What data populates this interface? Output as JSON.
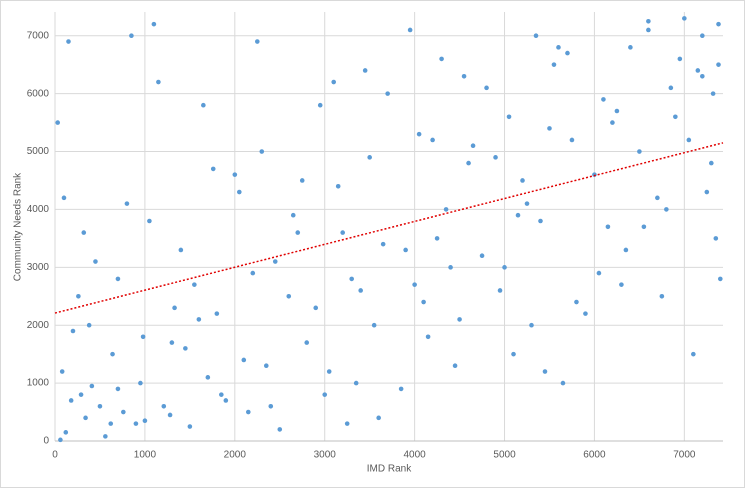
{
  "chart_data": {
    "type": "scatter",
    "x_label": "IMD Rank",
    "y_label": "Community Needs Rank",
    "xlim": [
      0,
      7430
    ],
    "ylim": [
      0,
      7410
    ],
    "xticks": [
      0,
      1000,
      2000,
      3000,
      4000,
      5000,
      6000,
      7000
    ],
    "yticks": [
      0,
      1000,
      2000,
      3000,
      4000,
      5000,
      6000,
      7000
    ],
    "grid": true,
    "color": "#5b9bd5",
    "x": [
      120,
      340,
      560,
      80,
      900,
      1210,
      1500,
      260,
      700,
      1850,
      2100,
      30,
      450,
      980,
      1330,
      1760,
      2400,
      2650,
      3050,
      3300,
      3600,
      3900,
      4200,
      4500,
      4800,
      5100,
      5400,
      5700,
      6000,
      6300,
      6600,
      6900,
      7200,
      7350,
      150,
      620,
      1100,
      1600,
      2050,
      2500,
      2950,
      3400,
      3850,
      4300,
      4750,
      5200,
      5650,
      6100,
      6550,
      7000,
      7300,
      200,
      500,
      800,
      1000,
      1400,
      1900,
      2300,
      2800,
      3200,
      3700,
      4100,
      4600,
      5000,
      5500,
      5900,
      6400,
      6800,
      7100,
      7380,
      60,
      380,
      760,
      1150,
      1700,
      2200,
      2700,
      3150,
      3550,
      4050,
      4450,
      4900,
      5350,
      5800,
      6250,
      6700,
      7150,
      7400,
      290,
      850,
      1450,
      2000,
      2600,
      3100,
      3650,
      4150,
      4650,
      5150,
      5600,
      6050,
      6500,
      6950,
      7250,
      410,
      1050,
      1550,
      2150,
      2750,
      3350,
      3950,
      4400,
      5050,
      5450,
      6150,
      6600,
      7050,
      7320,
      180,
      640,
      1280,
      1800,
      2450,
      3000,
      3500,
      4000,
      4550,
      5250,
      5750,
      6350,
      6850,
      7200,
      320,
      950,
      1650,
      2350,
      2900,
      3450,
      4250,
      4950,
      5550,
      6200,
      6750,
      7380,
      100,
      700,
      1300,
      2250,
      3250,
      4350,
      5300
    ],
    "values": [
      150,
      400,
      80,
      1200,
      300,
      600,
      250,
      2500,
      900,
      800,
      1400,
      5500,
      3100,
      1800,
      2300,
      4700,
      600,
      3900,
      1200,
      2800,
      400,
      3300,
      5200,
      2100,
      6100,
      1500,
      3800,
      6700,
      4600,
      2700,
      7100,
      5600,
      6300,
      3500,
      6900,
      300,
      7200,
      2100,
      4300,
      200,
      5800,
      2600,
      900,
      6600,
      3200,
      4500,
      1000,
      5900,
      3700,
      7300,
      4800,
      1900,
      600,
      4100,
      350,
      3300,
      700,
      5000,
      1700,
      3600,
      6000,
      2400,
      4800,
      3000,
      5400,
      2200,
      6800,
      4000,
      1500,
      6500,
      20,
      2000,
      500,
      6200,
      1100,
      2900,
      3600,
      4400,
      2000,
      5300,
      1300,
      4900,
      7000,
      2400,
      5700,
      4200,
      6400,
      2800,
      800,
      7000,
      1600,
      4600,
      2500,
      6200,
      3400,
      1800,
      5100,
      3900,
      6800,
      2900,
      5000,
      6600,
      4300,
      950,
      3800,
      2700,
      500,
      4500,
      1000,
      7100,
      3000,
      5600,
      1200,
      3700,
      7250,
      5200,
      6000,
      700,
      1500,
      450,
      2200,
      3100,
      800,
      4900,
      2700,
      6300,
      4100,
      5200,
      3300,
      6100,
      7000,
      3600,
      1000,
      5800,
      1300,
      2300,
      6400,
      3500,
      2600,
      6500,
      5500,
      2500,
      7200,
      4200,
      2800,
      1700,
      6900,
      300,
      4000,
      2000
    ],
    "trendline": {
      "x": [
        0,
        7430
      ],
      "y": [
        2210,
        5150
      ],
      "color": "#e00000"
    }
  }
}
